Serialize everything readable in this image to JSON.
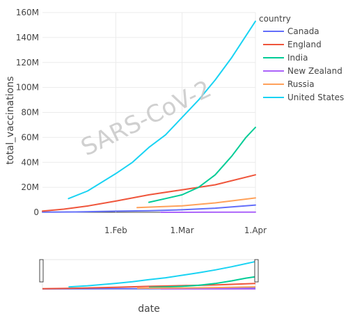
{
  "chart_data": {
    "type": "line",
    "watermark": "SARS-CoV-2",
    "xlabel": "date",
    "ylabel": "total_vaccinations",
    "legend": {
      "title": "country",
      "placement": "right"
    },
    "x_range": [
      "2021-01-01",
      "2021-04-01"
    ],
    "y_range": [
      0,
      160000000
    ],
    "grid": true,
    "range_slider": true,
    "x_ticks": [
      {
        "date": "2021-02-01",
        "label": "1.Feb"
      },
      {
        "date": "2021-03-01",
        "label": "1.Mar"
      },
      {
        "date": "2021-04-01",
        "label": "1.Apr"
      }
    ],
    "y_ticks": [
      {
        "value": 0,
        "label": "0"
      },
      {
        "value": 20000000,
        "label": "20M"
      },
      {
        "value": 40000000,
        "label": "40M"
      },
      {
        "value": 60000000,
        "label": "60M"
      },
      {
        "value": 80000000,
        "label": "80M"
      },
      {
        "value": 100000000,
        "label": "100M"
      },
      {
        "value": 120000000,
        "label": "120M"
      },
      {
        "value": 140000000,
        "label": "140M"
      },
      {
        "value": 160000000,
        "label": "160M"
      }
    ],
    "series": [
      {
        "name": "Canada",
        "color": "#636efa",
        "points": [
          [
            "2021-01-01",
            100000
          ],
          [
            "2021-01-15",
            300000
          ],
          [
            "2021-02-01",
            900000
          ],
          [
            "2021-02-15",
            1300000
          ],
          [
            "2021-03-01",
            2000000
          ],
          [
            "2021-03-15",
            3300000
          ],
          [
            "2021-04-01",
            5800000
          ]
        ]
      },
      {
        "name": "England",
        "color": "#ef553b",
        "points": [
          [
            "2021-01-01",
            1000000
          ],
          [
            "2021-01-10",
            2500000
          ],
          [
            "2021-01-20",
            5000000
          ],
          [
            "2021-02-01",
            9000000
          ],
          [
            "2021-02-15",
            14000000
          ],
          [
            "2021-03-01",
            18000000
          ],
          [
            "2021-03-15",
            22000000
          ],
          [
            "2021-04-01",
            30000000
          ]
        ]
      },
      {
        "name": "India",
        "color": "#00cc96",
        "points": [
          [
            "2021-02-15",
            8000000
          ],
          [
            "2021-02-22",
            11000000
          ],
          [
            "2021-03-01",
            14000000
          ],
          [
            "2021-03-08",
            20000000
          ],
          [
            "2021-03-15",
            30000000
          ],
          [
            "2021-03-22",
            45000000
          ],
          [
            "2021-03-28",
            60000000
          ],
          [
            "2021-04-01",
            68000000
          ]
        ]
      },
      {
        "name": "New Zealand",
        "color": "#ab63fa",
        "points": [
          [
            "2021-02-20",
            10000
          ],
          [
            "2021-03-10",
            50000
          ],
          [
            "2021-04-01",
            100000
          ]
        ]
      },
      {
        "name": "Russia",
        "color": "#ffa15a",
        "points": [
          [
            "2021-02-10",
            3800000
          ],
          [
            "2021-03-01",
            5200000
          ],
          [
            "2021-03-15",
            7500000
          ],
          [
            "2021-04-01",
            11500000
          ]
        ]
      },
      {
        "name": "United States",
        "color": "#19d3f3",
        "points": [
          [
            "2021-01-12",
            11000000
          ],
          [
            "2021-01-20",
            17000000
          ],
          [
            "2021-02-01",
            31000000
          ],
          [
            "2021-02-08",
            40000000
          ],
          [
            "2021-02-15",
            52000000
          ],
          [
            "2021-02-22",
            62000000
          ],
          [
            "2021-03-01",
            76000000
          ],
          [
            "2021-03-08",
            90000000
          ],
          [
            "2021-03-15",
            106000000
          ],
          [
            "2021-03-22",
            124000000
          ],
          [
            "2021-04-01",
            153000000
          ]
        ]
      }
    ]
  }
}
